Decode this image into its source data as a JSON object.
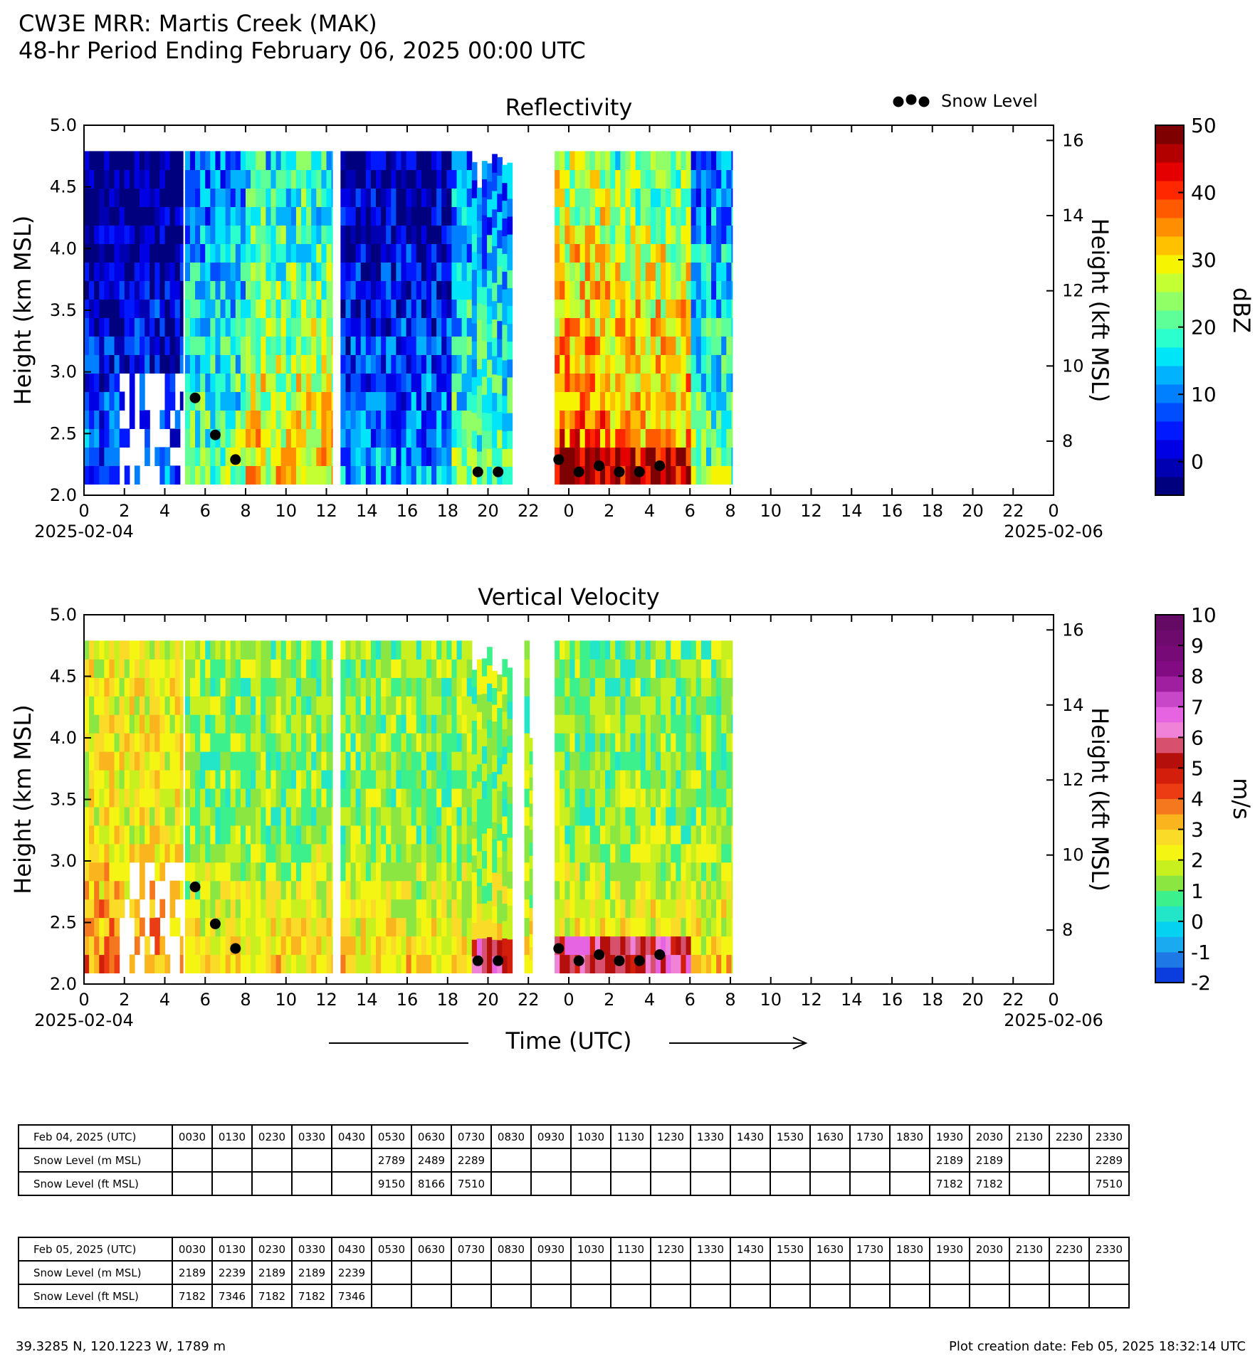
{
  "header": {
    "title": "CW3E MRR: Martis Creek (MAK)",
    "subtitle": "48-hr Period Ending February 06, 2025 00:00 UTC"
  },
  "legend": {
    "snow_level_label": "Snow Level"
  },
  "xaxis": {
    "ticks": [
      "0",
      "2",
      "4",
      "6",
      "8",
      "10",
      "12",
      "14",
      "16",
      "18",
      "20",
      "22",
      "0",
      "2",
      "4",
      "6",
      "8",
      "10",
      "12",
      "14",
      "16",
      "18",
      "20",
      "22",
      "0"
    ],
    "start_date": "2025-02-04",
    "end_date": "2025-02-06",
    "label": "Time (UTC)"
  },
  "chart_data": [
    {
      "type": "heatmap",
      "title": "Reflectivity",
      "ylabel": "Height (km MSL)",
      "ylabel_right": "Height (kft MSL)",
      "ylim": [
        2.0,
        5.0
      ],
      "yticks": [
        "2.0",
        "2.5",
        "3.0",
        "3.5",
        "4.0",
        "4.5",
        "5.0"
      ],
      "yticks_right": [
        "8",
        "10",
        "12",
        "14",
        "16"
      ],
      "xlim_hours": [
        0,
        48
      ],
      "colorbar": {
        "label": "dBZ",
        "range": [
          -5,
          50
        ],
        "ticks": [
          "0",
          "10",
          "20",
          "30",
          "40",
          "50"
        ],
        "colors": [
          "#00007f",
          "#0000b2",
          "#0000e5",
          "#0019ff",
          "#004cff",
          "#0080ff",
          "#00b2ff",
          "#00e5f7",
          "#2bffce",
          "#5eff99",
          "#91ff66",
          "#c4ff33",
          "#f7f400",
          "#ffc100",
          "#ff8e00",
          "#ff5a00",
          "#ff2700",
          "#e50000",
          "#b20000",
          "#7f0000"
        ]
      },
      "data_segments_hours": [
        [
          0,
          4.9
        ],
        [
          5.0,
          12.3
        ],
        [
          12.7,
          21.2
        ],
        [
          23.3,
          32.1
        ]
      ],
      "snow_level": {
        "x_hours": [
          5.5,
          6.5,
          7.5,
          19.5,
          20.5,
          23.5,
          24.5,
          25.5,
          26.5,
          27.5,
          28.5
        ],
        "y_km": [
          2.789,
          2.489,
          2.289,
          2.189,
          2.189,
          2.289,
          2.189,
          2.239,
          2.189,
          2.189,
          2.239
        ]
      }
    },
    {
      "type": "heatmap",
      "title": "Vertical Velocity",
      "ylabel": "Height (km MSL)",
      "ylabel_right": "Height (kft MSL)",
      "ylim": [
        2.0,
        5.0
      ],
      "yticks": [
        "2.0",
        "2.5",
        "3.0",
        "3.5",
        "4.0",
        "4.5",
        "5.0"
      ],
      "yticks_right": [
        "8",
        "10",
        "12",
        "14",
        "16"
      ],
      "xlim_hours": [
        0,
        48
      ],
      "colorbar": {
        "label": "m/s",
        "range": [
          -2,
          10
        ],
        "ticks": [
          "-2",
          "-1",
          "0",
          "1",
          "2",
          "3",
          "4",
          "5",
          "6",
          "7",
          "8",
          "9",
          "10"
        ],
        "colors": [
          "#0a3cde",
          "#1e78e6",
          "#19aaf0",
          "#05d2f0",
          "#23e6c8",
          "#3cf08c",
          "#8ce641",
          "#c8f01e",
          "#f5f514",
          "#fadc28",
          "#fab41e",
          "#f5781e",
          "#eb3c14",
          "#d21e0a",
          "#b40f0a",
          "#d7506e",
          "#f082d7",
          "#e664e1",
          "#c846c8",
          "#a01ea0",
          "#820a82",
          "#780a78",
          "#6e0a6e",
          "#640a64"
        ]
      },
      "data_segments_hours": [
        [
          0,
          4.9
        ],
        [
          5.0,
          12.3
        ],
        [
          12.7,
          21.2
        ],
        [
          21.8,
          22.2
        ],
        [
          23.3,
          32.1
        ]
      ],
      "snow_level": {
        "x_hours": [
          5.5,
          6.5,
          7.5,
          19.5,
          20.5,
          23.5,
          24.5,
          25.5,
          26.5,
          27.5,
          28.5
        ],
        "y_km": [
          2.789,
          2.489,
          2.289,
          2.189,
          2.189,
          2.289,
          2.189,
          2.239,
          2.189,
          2.189,
          2.239
        ]
      }
    }
  ],
  "tables": [
    {
      "header_label": "Feb 04, 2025 (UTC)",
      "times": [
        "0030",
        "0130",
        "0230",
        "0330",
        "0430",
        "0530",
        "0630",
        "0730",
        "0830",
        "0930",
        "1030",
        "1130",
        "1230",
        "1330",
        "1430",
        "1530",
        "1630",
        "1730",
        "1830",
        "1930",
        "2030",
        "2130",
        "2230",
        "2330"
      ],
      "rows": [
        {
          "label": "Snow Level (m MSL)",
          "values": [
            "",
            "",
            "",
            "",
            "",
            "2789",
            "2489",
            "2289",
            "",
            "",
            "",
            "",
            "",
            "",
            "",
            "",
            "",
            "",
            "",
            "2189",
            "2189",
            "",
            "",
            "2289"
          ]
        },
        {
          "label": "Snow Level (ft MSL)",
          "values": [
            "",
            "",
            "",
            "",
            "",
            "9150",
            "8166",
            "7510",
            "",
            "",
            "",
            "",
            "",
            "",
            "",
            "",
            "",
            "",
            "",
            "7182",
            "7182",
            "",
            "",
            "7510"
          ]
        }
      ]
    },
    {
      "header_label": "Feb 05, 2025 (UTC)",
      "times": [
        "0030",
        "0130",
        "0230",
        "0330",
        "0430",
        "0530",
        "0630",
        "0730",
        "0830",
        "0930",
        "1030",
        "1130",
        "1230",
        "1330",
        "1430",
        "1530",
        "1630",
        "1730",
        "1830",
        "1930",
        "2030",
        "2130",
        "2230",
        "2330"
      ],
      "rows": [
        {
          "label": "Snow Level (m MSL)",
          "values": [
            "2189",
            "2239",
            "2189",
            "2189",
            "2239",
            "",
            "",
            "",
            "",
            "",
            "",
            "",
            "",
            "",
            "",
            "",
            "",
            "",
            "",
            "",
            "",
            "",
            "",
            ""
          ]
        },
        {
          "label": "Snow Level (ft MSL)",
          "values": [
            "7182",
            "7346",
            "7182",
            "7182",
            "7346",
            "",
            "",
            "",
            "",
            "",
            "",
            "",
            "",
            "",
            "",
            "",
            "",
            "",
            "",
            "",
            "",
            "",
            "",
            ""
          ]
        }
      ]
    }
  ],
  "footer": {
    "location": "39.3285 N, 120.1223 W, 1789 m",
    "creation_date": "Plot creation date: Feb 05, 2025 18:32:14 UTC"
  }
}
